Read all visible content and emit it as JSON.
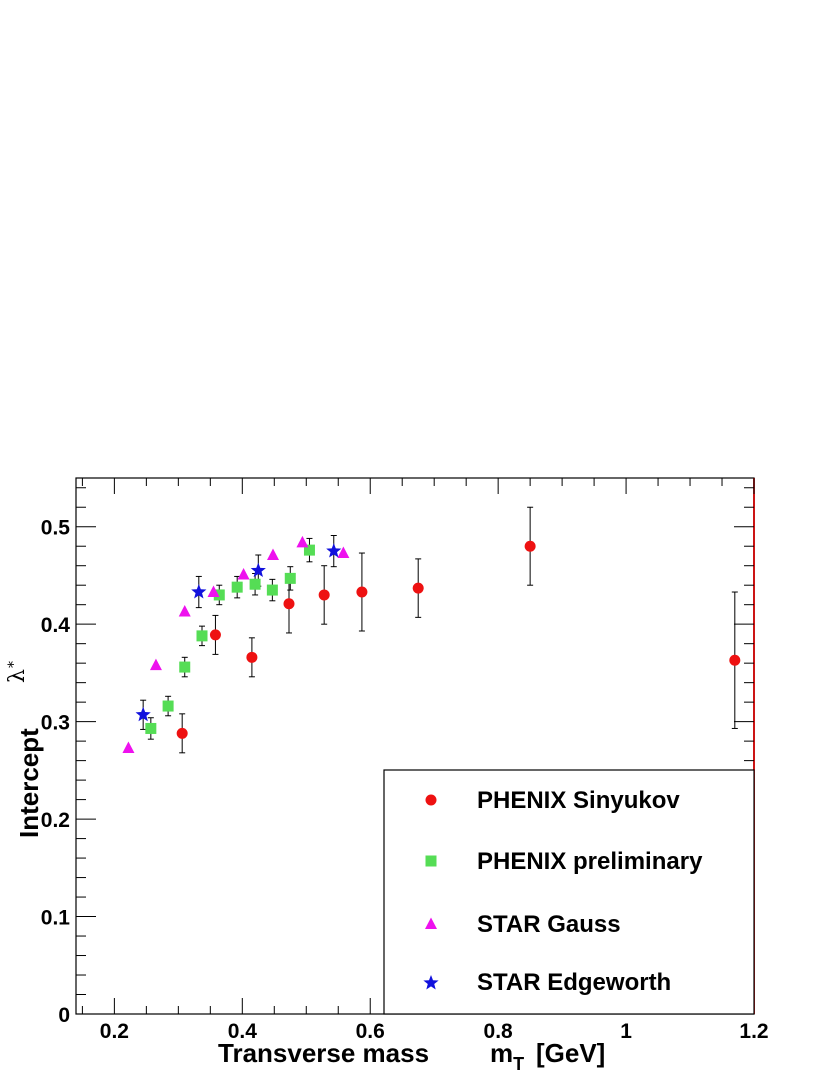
{
  "chart_data": {
    "type": "scatter",
    "xlabel": "Transverse mass",
    "xlabel_symbol": "m",
    "xlabel_sub": "T",
    "xlabel_unit": "[GeV]",
    "ylabel": "Intercept",
    "ylabel_symbol": "λ",
    "ylabel_sub": "*",
    "xlim": [
      0.14,
      1.2
    ],
    "ylim": [
      0,
      0.55
    ],
    "x_ticks": [
      0.2,
      0.4,
      0.6,
      0.8,
      1,
      1.2
    ],
    "x_tick_labels": [
      "0.2",
      "0.4",
      "0.6",
      "0.8",
      "1",
      "1.2"
    ],
    "y_ticks": [
      0,
      0.1,
      0.2,
      0.3,
      0.4,
      0.5
    ],
    "y_tick_labels": [
      "0",
      "0.1",
      "0.2",
      "0.3",
      "0.4",
      "0.5"
    ],
    "grid": false,
    "legend_position": "bottom-right",
    "series": [
      {
        "name": "PHENIX Sinyukov",
        "marker": "circle",
        "color": "#ee1111",
        "points": [
          {
            "x": 0.306,
            "y": 0.288,
            "err": 0.02
          },
          {
            "x": 0.358,
            "y": 0.389,
            "err": 0.02
          },
          {
            "x": 0.415,
            "y": 0.366,
            "err": 0.02
          },
          {
            "x": 0.473,
            "y": 0.421,
            "err": 0.03
          },
          {
            "x": 0.528,
            "y": 0.43,
            "err": 0.03
          },
          {
            "x": 0.587,
            "y": 0.433,
            "err": 0.04
          },
          {
            "x": 0.675,
            "y": 0.437,
            "err": 0.03
          },
          {
            "x": 0.85,
            "y": 0.48,
            "err": 0.04
          },
          {
            "x": 1.17,
            "y": 0.363,
            "err": 0.07
          }
        ]
      },
      {
        "name": "PHENIX preliminary",
        "marker": "square",
        "color": "#55dd55",
        "points": [
          {
            "x": 0.257,
            "y": 0.293,
            "err": 0.011
          },
          {
            "x": 0.284,
            "y": 0.316,
            "err": 0.01
          },
          {
            "x": 0.31,
            "y": 0.356,
            "err": 0.01
          },
          {
            "x": 0.337,
            "y": 0.388,
            "err": 0.01
          },
          {
            "x": 0.364,
            "y": 0.43,
            "err": 0.01
          },
          {
            "x": 0.392,
            "y": 0.438,
            "err": 0.011
          },
          {
            "x": 0.42,
            "y": 0.441,
            "err": 0.011
          },
          {
            "x": 0.447,
            "y": 0.435,
            "err": 0.011
          },
          {
            "x": 0.475,
            "y": 0.447,
            "err": 0.012
          },
          {
            "x": 0.505,
            "y": 0.476,
            "err": 0.012
          }
        ]
      },
      {
        "name": "STAR Gauss",
        "marker": "triangle",
        "color": "#ee11ee",
        "points": [
          {
            "x": 0.222,
            "y": 0.273
          },
          {
            "x": 0.265,
            "y": 0.358
          },
          {
            "x": 0.31,
            "y": 0.413
          },
          {
            "x": 0.355,
            "y": 0.433
          },
          {
            "x": 0.402,
            "y": 0.451
          },
          {
            "x": 0.448,
            "y": 0.471
          },
          {
            "x": 0.494,
            "y": 0.484
          },
          {
            "x": 0.558,
            "y": 0.473
          }
        ]
      },
      {
        "name": "STAR Edgeworth",
        "marker": "star",
        "color": "#1111dd",
        "points": [
          {
            "x": 0.245,
            "y": 0.307,
            "err": 0.015
          },
          {
            "x": 0.332,
            "y": 0.433,
            "err": 0.016
          },
          {
            "x": 0.425,
            "y": 0.455,
            "err": 0.016
          },
          {
            "x": 0.543,
            "y": 0.475,
            "err": 0.016
          }
        ]
      }
    ]
  }
}
